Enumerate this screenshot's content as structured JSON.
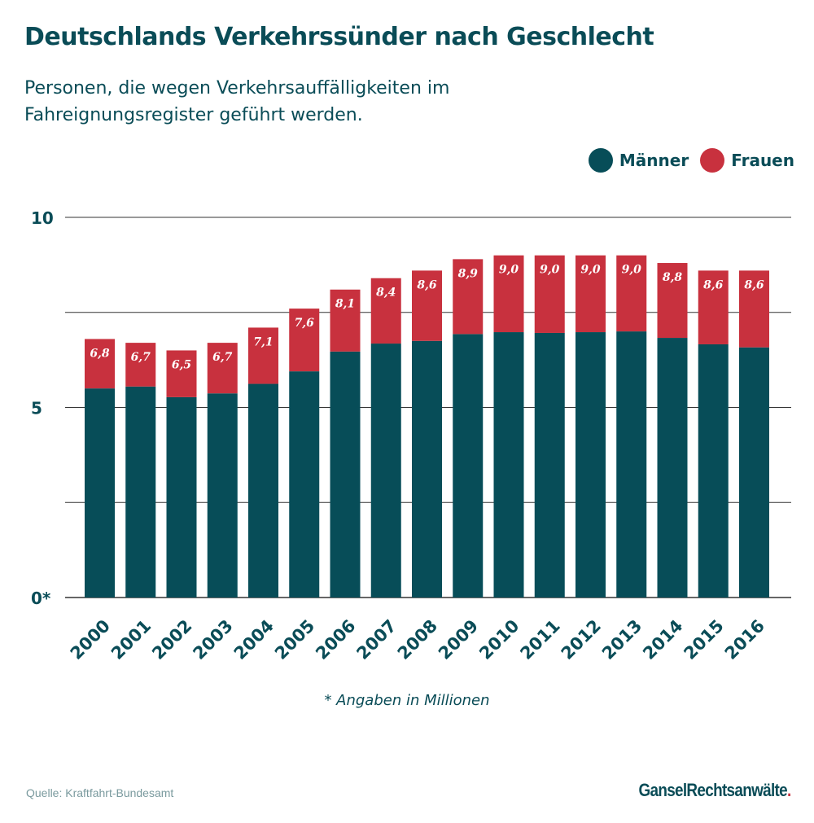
{
  "title": "Deutschlands Verkehrssünder nach Geschlecht",
  "subtitle": "Personen, die wegen Verkehrsauffälligkeiten im Fahreignungsregister geführt werden.",
  "footnote": "* Angaben in Millionen",
  "source": "Quelle: Kraftfahrt-Bundesamt",
  "brand": {
    "part1": "Gansel",
    "part2": "Rechtsanwälte",
    "dot": "."
  },
  "colors": {
    "maenner": "#074d58",
    "frauen": "#c8313e",
    "text": "#0a4c57",
    "grid": "#333333"
  },
  "chart_data": {
    "type": "bar",
    "stacked": true,
    "categories": [
      "2000",
      "2001",
      "2002",
      "2003",
      "2004",
      "2005",
      "2006",
      "2007",
      "2008",
      "2009",
      "2010",
      "2011",
      "2012",
      "2013",
      "2014",
      "2015",
      "2016"
    ],
    "series": [
      {
        "name": "Männer",
        "values": [
          5.5,
          5.55,
          5.27,
          5.37,
          5.62,
          5.95,
          6.47,
          6.68,
          6.75,
          6.93,
          6.98,
          6.96,
          6.98,
          7.0,
          6.83,
          6.66,
          6.58
        ]
      },
      {
        "name": "Frauen",
        "values": [
          1.3,
          1.15,
          1.23,
          1.33,
          1.48,
          1.65,
          1.63,
          1.72,
          1.85,
          1.97,
          2.02,
          2.04,
          2.02,
          2.0,
          1.97,
          1.94,
          2.02
        ]
      }
    ],
    "totals_labels": [
      "6,8",
      "6,7",
      "6,5",
      "6,7",
      "7,1",
      "7,6",
      "8,1",
      "8,4",
      "8,6",
      "8,9",
      "9,0",
      "9,0",
      "9,0",
      "9,0",
      "8,8",
      "8,6",
      "8,6"
    ],
    "ytick_labels": [
      "0*",
      "5",
      "10"
    ],
    "ytick_values": [
      0,
      5,
      10
    ],
    "gridlines": [
      0,
      2.5,
      5,
      7.5,
      10
    ],
    "ylim": [
      0,
      10
    ],
    "grid": true,
    "legend_position": "top-right"
  }
}
